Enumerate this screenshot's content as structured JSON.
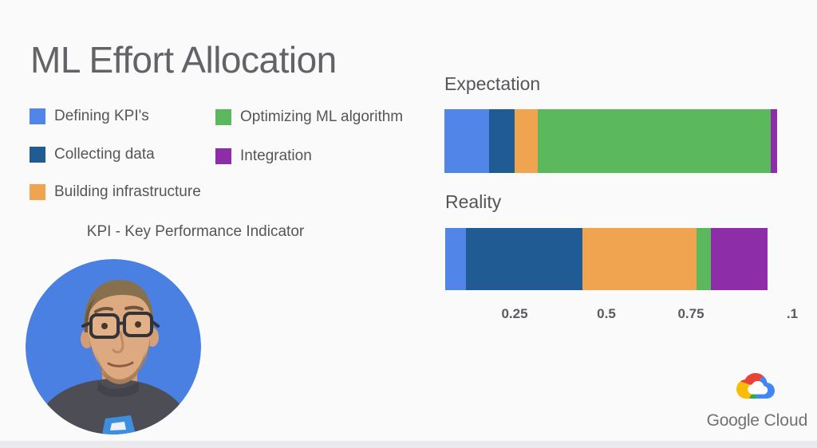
{
  "title": "ML Effort Allocation",
  "kpi_note": "KPI - Key Performance Indicator",
  "legend": {
    "items": [
      {
        "label": "Defining KPI's",
        "color": "#5285E8"
      },
      {
        "label": "Collecting data",
        "color": "#215B94"
      },
      {
        "label": "Building infrastructure",
        "color": "#F0A44F"
      },
      {
        "label": "Optimizing ML algorithm",
        "color": "#5CB85C"
      },
      {
        "label": "Integration",
        "color": "#8E2DA8"
      }
    ]
  },
  "chart_data": [
    {
      "type": "bar",
      "orientation": "horizontal-stacked",
      "title": "Expectation",
      "xlim": [
        0,
        1
      ],
      "grid": false,
      "legend_position": "left-of-chart",
      "series": [
        {
          "name": "Defining KPI's",
          "value": 0.135,
          "color": "#5285E8"
        },
        {
          "name": "Collecting data",
          "value": 0.075,
          "color": "#215B94"
        },
        {
          "name": "Building infrastructure",
          "value": 0.07,
          "color": "#F0A44F"
        },
        {
          "name": "Optimizing ML algorithm",
          "value": 0.7,
          "color": "#5CB85C"
        },
        {
          "name": "Integration",
          "value": 0.02,
          "color": "#8E2DA8"
        }
      ],
      "axis_ticks": []
    },
    {
      "type": "bar",
      "orientation": "horizontal-stacked",
      "title": "Reality",
      "xlim": [
        0,
        1
      ],
      "grid": false,
      "legend_position": "left-of-chart",
      "series": [
        {
          "name": "Defining KPI's",
          "value": 0.065,
          "color": "#5285E8"
        },
        {
          "name": "Collecting data",
          "value": 0.36,
          "color": "#215B94"
        },
        {
          "name": "Building infrastructure",
          "value": 0.355,
          "color": "#F0A44F"
        },
        {
          "name": "Optimizing ML algorithm",
          "value": 0.045,
          "color": "#5CB85C"
        },
        {
          "name": "Integration",
          "value": 0.175,
          "color": "#8E2DA8"
        }
      ],
      "axis_ticks": [
        "0.25",
        "0.5",
        "0.75",
        ".1"
      ]
    }
  ],
  "avatar": {
    "name": "presenter-headshot",
    "background": "#4A80E2"
  },
  "brand": {
    "google": "Google",
    "cloud": "Cloud",
    "logo_colors": {
      "red": "#EA4335",
      "yellow": "#FBBC05",
      "green": "#34A853",
      "blue": "#4285F4"
    }
  },
  "colors": {
    "background": "#FAFAFA",
    "footer_strip": "#EAEAEC",
    "title_text": "#636367",
    "body_text": "#55565A"
  }
}
